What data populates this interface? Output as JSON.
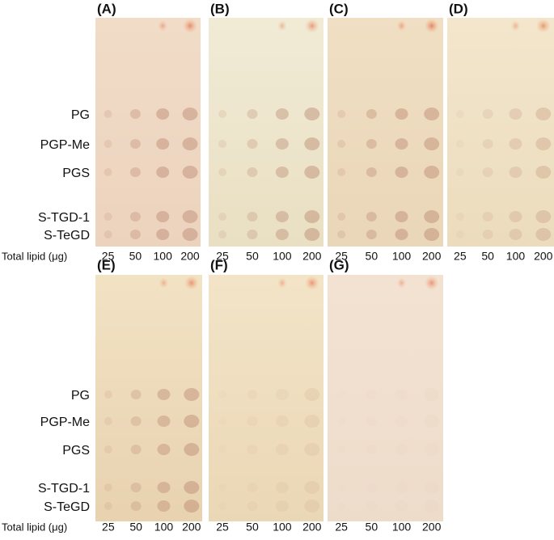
{
  "rows": [
    {
      "lipids": [
        "PG",
        "PGP-Me",
        "PGS",
        "S-TGD-1",
        "S-TeGD"
      ],
      "axis_label": "Total lipid (μg)",
      "panels": [
        {
          "label": "(A)",
          "lanes": [
            "25",
            "50",
            "100",
            "200"
          ]
        },
        {
          "label": "(B)",
          "lanes": [
            "25",
            "50",
            "100",
            "200"
          ]
        },
        {
          "label": "(C)",
          "lanes": [
            "25",
            "50",
            "100",
            "200"
          ]
        },
        {
          "label": "(D)",
          "lanes": [
            "25",
            "50",
            "100",
            "200"
          ]
        }
      ]
    },
    {
      "lipids": [
        "PG",
        "PGP-Me",
        "PGS",
        "S-TGD-1",
        "S-TeGD"
      ],
      "axis_label": "Total lipid (μg)",
      "panels": [
        {
          "label": "(E)",
          "lanes": [
            "25",
            "50",
            "100",
            "200"
          ]
        },
        {
          "label": "(F)",
          "lanes": [
            "25",
            "50",
            "100",
            "200"
          ]
        },
        {
          "label": "(G)",
          "lanes": [
            "25",
            "50",
            "100",
            "200"
          ]
        }
      ]
    }
  ]
}
